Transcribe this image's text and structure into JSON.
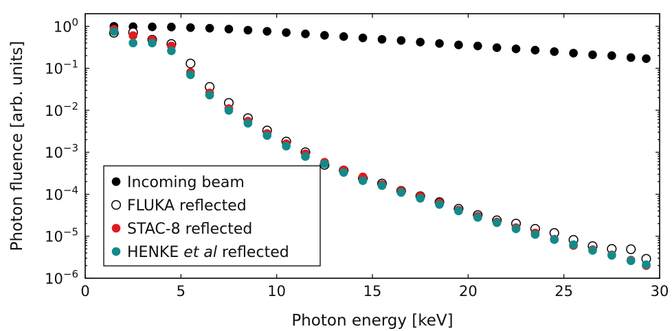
{
  "chart_data": {
    "type": "scatter",
    "xlabel": "Photon energy [keV]",
    "ylabel": "Photon fluence [arb. units]",
    "xlim": [
      0,
      30
    ],
    "ylim_exponents": [
      -6,
      0.3
    ],
    "y_scale": "log",
    "x_ticks": [
      0,
      5,
      10,
      15,
      20,
      25,
      30
    ],
    "y_tick_exponents": [
      0,
      -1,
      -2,
      -3,
      -4,
      -5,
      -6
    ],
    "y_tick_base": "10",
    "grid": false,
    "legend_position": "lower-left",
    "series": [
      {
        "name": "Incoming beam",
        "label_parts": [
          "Incoming beam"
        ],
        "marker": "filled-circle",
        "color": "#000000",
        "x": [
          1.5,
          2.5,
          3.5,
          4.5,
          5.5,
          6.5,
          7.5,
          8.5,
          9.5,
          10.5,
          11.5,
          12.5,
          13.5,
          14.5,
          15.5,
          16.5,
          17.5,
          18.5,
          19.5,
          20.5,
          21.5,
          22.5,
          23.5,
          24.5,
          25.5,
          26.5,
          27.5,
          28.5,
          29.3
        ],
        "y": [
          1.0,
          0.98,
          0.97,
          0.96,
          0.93,
          0.9,
          0.86,
          0.81,
          0.76,
          0.71,
          0.66,
          0.61,
          0.57,
          0.53,
          0.49,
          0.46,
          0.42,
          0.39,
          0.36,
          0.34,
          0.31,
          0.29,
          0.27,
          0.25,
          0.23,
          0.21,
          0.2,
          0.18,
          0.17
        ]
      },
      {
        "name": "FLUKA reflected",
        "label_parts": [
          "FLUKA reflected"
        ],
        "marker": "open-circle",
        "color": "#000000",
        "x": [
          1.5,
          2.5,
          3.5,
          4.5,
          5.5,
          6.5,
          7.5,
          8.5,
          9.5,
          10.5,
          11.5,
          12.5,
          13.5,
          14.5,
          15.5,
          16.5,
          17.5,
          18.5,
          19.5,
          20.5,
          21.5,
          22.5,
          23.5,
          24.5,
          25.5,
          26.5,
          27.5,
          28.5,
          29.3
        ],
        "y": [
          0.7,
          0.72,
          0.48,
          0.38,
          0.13,
          0.036,
          0.015,
          0.0065,
          0.0033,
          0.0018,
          0.001,
          0.0005,
          0.00037,
          0.00024,
          0.00018,
          0.00012,
          9e-05,
          6.5e-05,
          4.5e-05,
          3.2e-05,
          2.4e-05,
          2e-05,
          1.5e-05,
          1.2e-05,
          8.2e-06,
          5.8e-06,
          5e-06,
          4.9e-06,
          2.9e-06
        ]
      },
      {
        "name": "STAC-8 reflected",
        "label_parts": [
          "STAC-8 reflected"
        ],
        "marker": "filled-circle",
        "color": "#e31a1c",
        "x": [
          1.5,
          2.5,
          3.5,
          4.5,
          5.5,
          6.5,
          7.5,
          8.5,
          9.5,
          10.5,
          11.5,
          12.5,
          13.5,
          14.5,
          15.5,
          16.5,
          17.5,
          18.5,
          19.5,
          20.5,
          21.5,
          22.5,
          23.5,
          24.5,
          25.5,
          26.5,
          27.5,
          28.5,
          29.3
        ],
        "y": [
          0.85,
          0.6,
          0.48,
          0.34,
          0.08,
          0.026,
          0.011,
          0.0055,
          0.0028,
          0.0016,
          0.00092,
          0.00058,
          0.00038,
          0.00026,
          0.00017,
          0.00012,
          9e-05,
          6.3e-05,
          4.2e-05,
          3e-05,
          2.2e-05,
          1.6e-05,
          1.2e-05,
          8.5e-06,
          6e-06,
          4.8e-06,
          3.6e-06,
          2.7e-06,
          2e-06
        ]
      },
      {
        "name": "HENKE et al reflected",
        "label_parts": [
          "HENKE ",
          "et al",
          " reflected"
        ],
        "marker": "filled-circle",
        "color": "#138a8a",
        "x": [
          1.5,
          2.5,
          3.5,
          4.5,
          5.5,
          6.5,
          7.5,
          8.5,
          9.5,
          10.5,
          11.5,
          12.5,
          13.5,
          14.5,
          15.5,
          16.5,
          17.5,
          18.5,
          19.5,
          20.5,
          21.5,
          22.5,
          23.5,
          24.5,
          25.5,
          26.5,
          27.5,
          28.5,
          29.3
        ],
        "y": [
          0.75,
          0.4,
          0.4,
          0.26,
          0.07,
          0.023,
          0.0099,
          0.0049,
          0.0025,
          0.0014,
          0.00079,
          0.00053,
          0.00033,
          0.00021,
          0.00016,
          0.00011,
          8e-05,
          5.7e-05,
          4e-05,
          2.8e-05,
          2.1e-05,
          1.5e-05,
          1.1e-05,
          8.3e-06,
          6.3e-06,
          4.6e-06,
          3.5e-06,
          2.6e-06,
          2.1e-06
        ]
      }
    ]
  }
}
